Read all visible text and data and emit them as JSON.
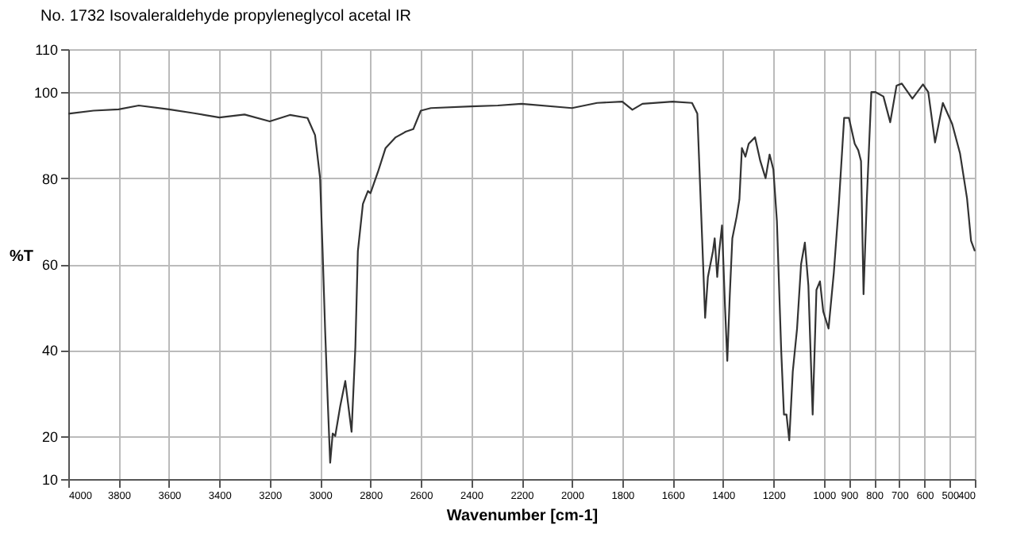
{
  "chart_data": {
    "type": "line",
    "title": "No. 1732 Isovaleraldehyde propyleneglycol acetal IR",
    "xlabel": "Wavenumber [cm-1]",
    "ylabel": "%T",
    "xlim": [
      4000,
      400
    ],
    "ylim": [
      10,
      110
    ],
    "xticks": [
      4000,
      3800,
      3600,
      3400,
      3200,
      3000,
      2800,
      2600,
      2400,
      2200,
      2000,
      1800,
      1600,
      1400,
      1200,
      1000,
      900,
      800,
      700,
      600,
      500,
      400
    ],
    "yticks": [
      10,
      20,
      40,
      60,
      80,
      100,
      110
    ],
    "grid": true,
    "marker": "none",
    "line_style": "solid",
    "series": [
      {
        "color": "#333333",
        "x": [
          4000,
          3900,
          3800,
          3720,
          3600,
          3500,
          3400,
          3300,
          3200,
          3120,
          3050,
          3020,
          3000,
          2990,
          2980,
          2970,
          2960,
          2950,
          2940,
          2920,
          2900,
          2875,
          2860,
          2850,
          2830,
          2810,
          2800,
          2770,
          2740,
          2700,
          2660,
          2630,
          2600,
          2560,
          2400,
          2294,
          2200,
          2000,
          1900,
          1800,
          1760,
          1720,
          1600,
          1523,
          1502,
          1481,
          1471,
          1460,
          1440,
          1433,
          1423,
          1415,
          1404,
          1392,
          1383,
          1373,
          1363,
          1346,
          1335,
          1325,
          1311,
          1298,
          1273,
          1252,
          1231,
          1215,
          1200,
          1186,
          1169,
          1158,
          1148,
          1137,
          1123,
          1106,
          1090,
          1075,
          1061,
          1044,
          1029,
          1015,
          1002,
          981,
          960,
          940,
          919,
          900,
          877,
          863,
          852,
          842,
          829,
          811,
          794,
          763,
          736,
          711,
          690,
          648,
          606,
          585,
          558,
          527,
          490,
          459,
          431,
          415,
          400
        ],
        "values": [
          95,
          95.7,
          96,
          96.9,
          96,
          95.1,
          94.1,
          94.8,
          93.2,
          94.7,
          94,
          90,
          80,
          63,
          44.6,
          28.6,
          13.8,
          20.6,
          20,
          27,
          32.8,
          21,
          40.7,
          63,
          74,
          77,
          76.5,
          81.5,
          87,
          89.5,
          90.8,
          91.4,
          95.7,
          96.3,
          96.7,
          96.9,
          97.3,
          96.3,
          97.5,
          97.8,
          95.9,
          97.3,
          97.8,
          97.5,
          95,
          63,
          47.5,
          57,
          63,
          66,
          57,
          63,
          69,
          50,
          37.5,
          53,
          66,
          71,
          75,
          87,
          85,
          88,
          89.5,
          84,
          80,
          85.5,
          82,
          70,
          40,
          25,
          25,
          19,
          35,
          45,
          60,
          65,
          55,
          25,
          54,
          56,
          49,
          45,
          58,
          74,
          94,
          94,
          88,
          86.5,
          84,
          53,
          75,
          100,
          100,
          99,
          93,
          101.5,
          102,
          98.5,
          101.8,
          100,
          88.3,
          97.5,
          92.6,
          85.8,
          75.3,
          65.4,
          63
        ]
      }
    ]
  }
}
